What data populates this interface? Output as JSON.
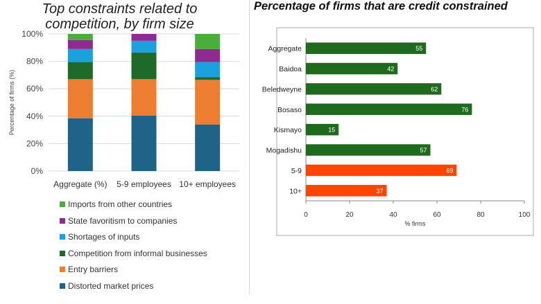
{
  "chart_data": [
    {
      "type": "bar",
      "orientation": "vertical",
      "stacked": true,
      "title_lines": [
        "Top constraints related to",
        "competition, by firm size"
      ],
      "ylabel": "Percentage of firms (%)",
      "ylim": [
        0,
        100
      ],
      "yticks": [
        "0%",
        "20%",
        "40%",
        "60%",
        "80%",
        "100%"
      ],
      "grid": true,
      "legend_position": "bottom",
      "categories": [
        "Aggregate (%)",
        "5-9 employees",
        "10+ employees"
      ],
      "series": [
        {
          "name": "Distorted market prices",
          "color": "#1f6389",
          "values": [
            38.5,
            40.5,
            34
          ]
        },
        {
          "name": "Entry barriers",
          "color": "#ed7d31",
          "values": [
            28.5,
            26.5,
            32.5
          ]
        },
        {
          "name": "Competition from informal businesses",
          "color": "#1e6b29",
          "values": [
            12.5,
            19.5,
            2
          ]
        },
        {
          "name": "Shortages of inputs",
          "color": "#1ba1de",
          "values": [
            9.5,
            8.5,
            11
          ]
        },
        {
          "name": "State favoritism to companies",
          "color": "#8e2b8f",
          "values": [
            6.5,
            5,
            9.5
          ]
        },
        {
          "name": "Imports from other countries",
          "color": "#4aae3a",
          "values": [
            4.5,
            0,
            11
          ]
        }
      ]
    },
    {
      "type": "bar",
      "orientation": "horizontal",
      "title": "Percentage of firms that are credit constrained",
      "xlabel": "% firms",
      "xlim": [
        0,
        100
      ],
      "xticks": [
        0,
        20,
        40,
        60,
        80,
        100
      ],
      "grid": false,
      "categories": [
        "Aggregate",
        "Baidoa",
        "Beledweyne",
        "Bosaso",
        "Kismayo",
        "Mogadishu",
        "5-9",
        "10+"
      ],
      "values": [
        55,
        42,
        62,
        76,
        15,
        57,
        69,
        37
      ],
      "colors": [
        "#1e6b1e",
        "#1e6b1e",
        "#1e6b1e",
        "#1e6b1e",
        "#1e6b1e",
        "#1e6b1e",
        "#ff4500",
        "#ff4500"
      ]
    }
  ]
}
